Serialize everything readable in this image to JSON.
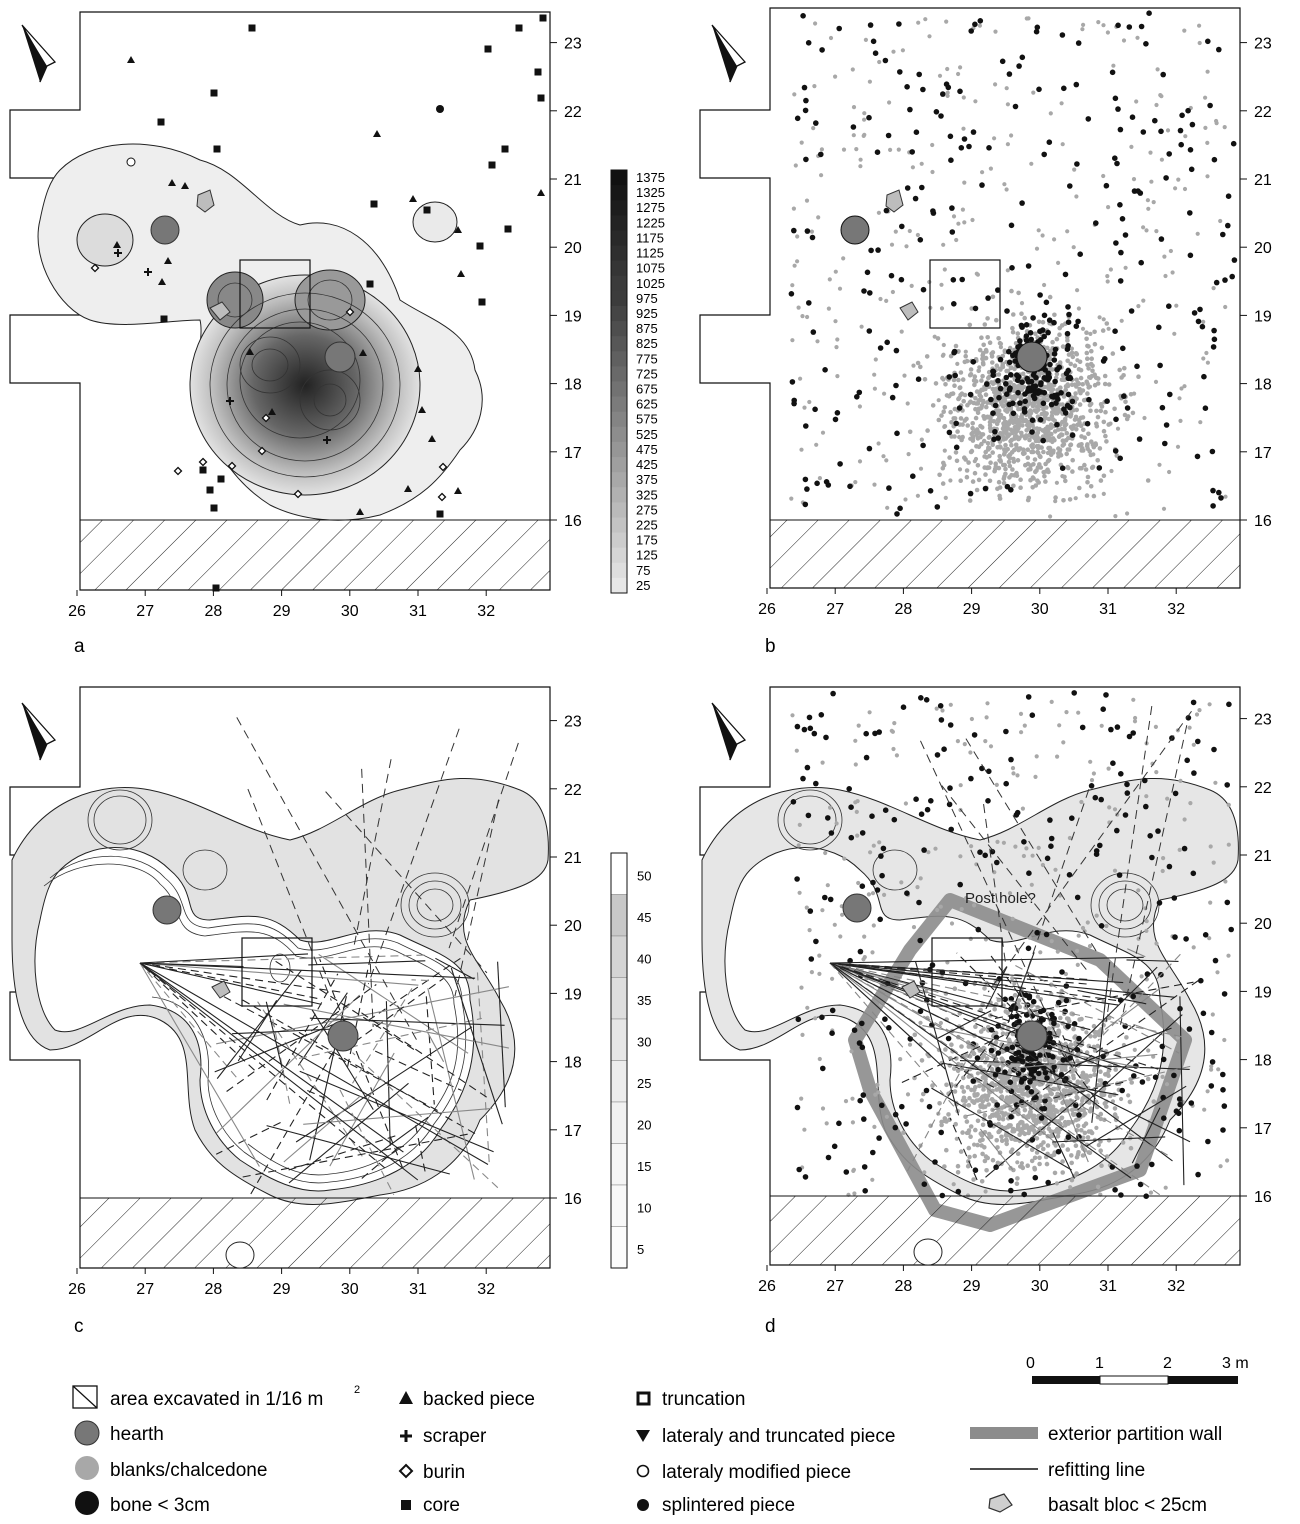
{
  "panels": [
    {
      "id": "a",
      "label": "a"
    },
    {
      "id": "b",
      "label": "b"
    },
    {
      "id": "c",
      "label": "c"
    },
    {
      "id": "d",
      "label": "d"
    }
  ],
  "x_ticks": [
    "26",
    "27",
    "28",
    "29",
    "30",
    "31",
    "32"
  ],
  "y_ticks": [
    "16",
    "17",
    "18",
    "19",
    "20",
    "21",
    "22",
    "23"
  ],
  "scale_a": {
    "labels": [
      "1375",
      "1325",
      "1275",
      "1225",
      "1175",
      "1125",
      "1075",
      "1025",
      "975",
      "925",
      "875",
      "825",
      "775",
      "725",
      "675",
      "625",
      "575",
      "525",
      "475",
      "425",
      "375",
      "325",
      "275",
      "225",
      "175",
      "125",
      "75",
      "25"
    ]
  },
  "scale_c": {
    "labels": [
      "50",
      "45",
      "40",
      "35",
      "30",
      "25",
      "20",
      "15",
      "10",
      "5"
    ]
  },
  "annotation_d": "Post hole?",
  "scale_bar": {
    "labels": [
      "0",
      "1",
      "2",
      "3 m"
    ]
  },
  "legend": {
    "col1": {
      "excavated": "area excavated in 1/16 m",
      "excavated_sup": "2",
      "hearth": "hearth",
      "blanks": "blanks/chalcedone",
      "bone": "bone < 3cm"
    },
    "col2": {
      "backed": "backed piece",
      "scraper": "scraper",
      "burin": "burin",
      "core": "core"
    },
    "col3": {
      "truncation": "truncation",
      "lateraly_truncated": "lateraly and truncated piece",
      "lateraly_modified": "lateraly modified piece",
      "splintered": "splintered piece"
    },
    "col4": {
      "wall": "exterior partition wall",
      "refitting": "refitting line",
      "basalt": "basalt bloc < 25cm"
    }
  },
  "colors": {
    "hearth": "#777777",
    "blanks": "#a8a8a8",
    "wall": "#8c8c8c",
    "dark": "#111111"
  }
}
